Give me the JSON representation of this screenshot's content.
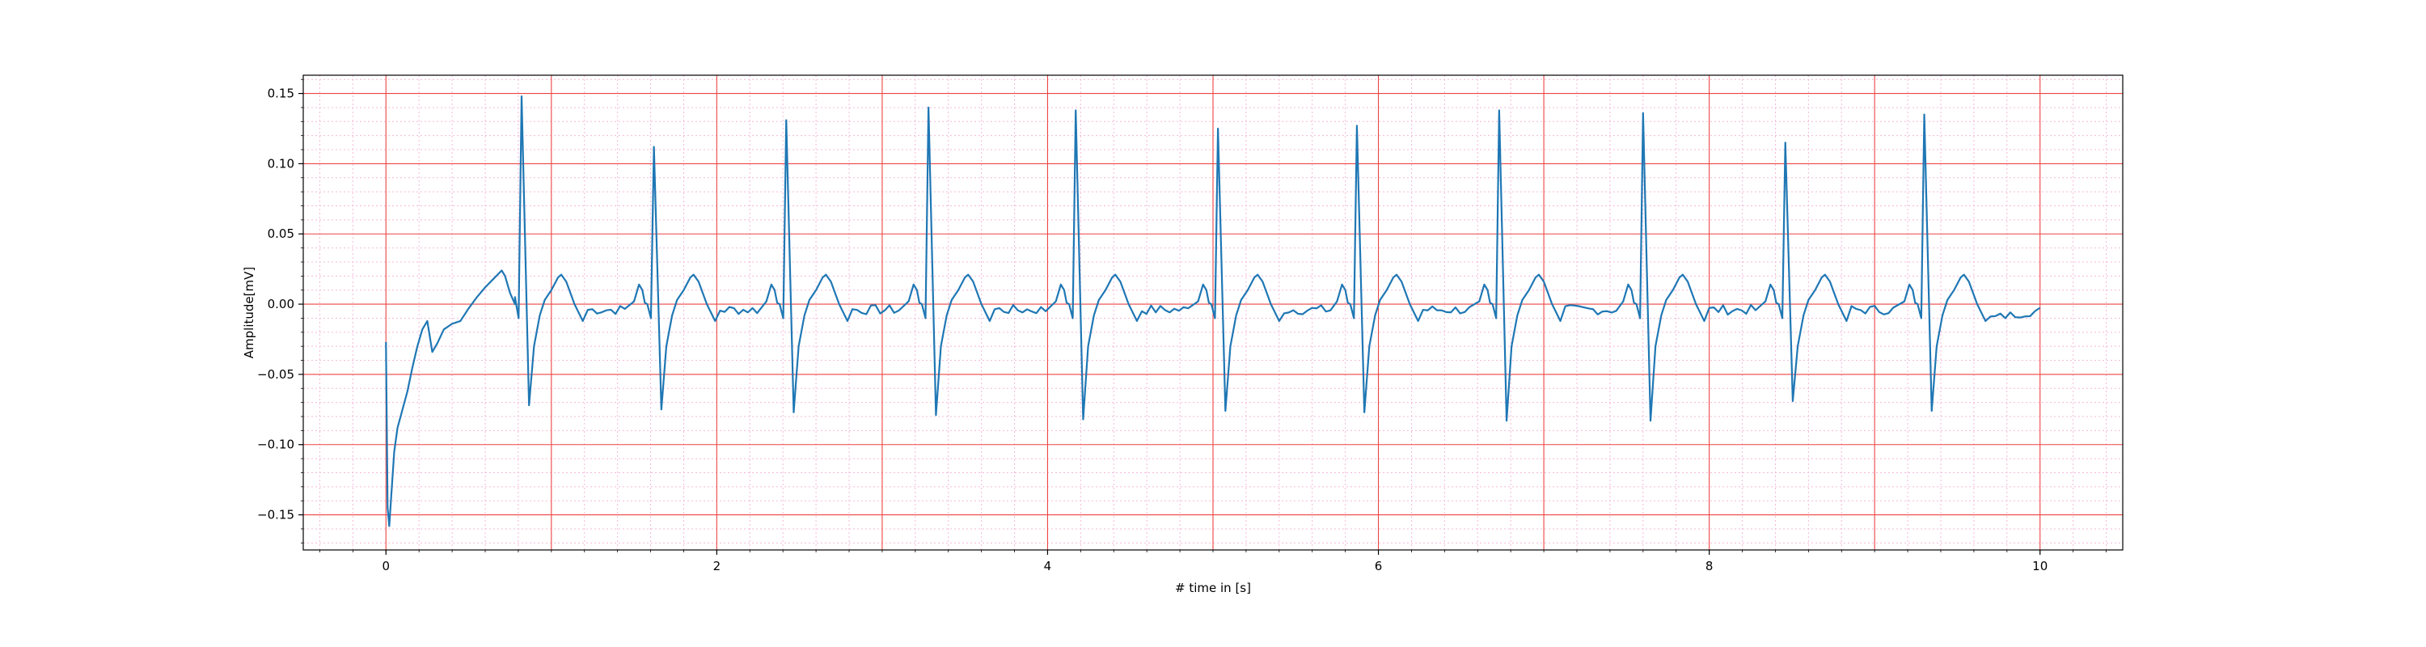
{
  "chart_data": {
    "type": "line",
    "xlabel": "# time in [s]",
    "ylabel": "Amplitude[mV]",
    "xlim": [
      -0.5,
      10.5
    ],
    "ylim": [
      -0.175,
      0.163
    ],
    "x_ticks": [
      0,
      2,
      4,
      6,
      8,
      10
    ],
    "x_tick_labels": [
      "0",
      "2",
      "4",
      "6",
      "8",
      "10"
    ],
    "y_ticks": [
      -0.15,
      -0.1,
      -0.05,
      0.0,
      0.05,
      0.1,
      0.15
    ],
    "y_tick_labels": [
      "−0.15",
      "−0.10",
      "−0.05",
      "0.00",
      "0.05",
      "0.10",
      "0.15"
    ],
    "grid": {
      "major": true,
      "minor": true,
      "major_x_step": 1,
      "major_y_step": 0.05,
      "minor_x_step": 0.2,
      "minor_y_step": 0.01
    },
    "colors": {
      "line": "#1f77b4",
      "major_grid": "#ee4444",
      "minor_grid": "#f6b8d8"
    },
    "r_peaks": [
      {
        "t": 0.82,
        "r": 0.148,
        "s": -0.072
      },
      {
        "t": 1.62,
        "r": 0.112,
        "s": -0.075
      },
      {
        "t": 2.42,
        "r": 0.131,
        "s": -0.077
      },
      {
        "t": 3.28,
        "r": 0.14,
        "s": -0.079
      },
      {
        "t": 4.17,
        "r": 0.138,
        "s": -0.082
      },
      {
        "t": 5.03,
        "r": 0.125,
        "s": -0.076
      },
      {
        "t": 5.87,
        "r": 0.127,
        "s": -0.077
      },
      {
        "t": 6.73,
        "r": 0.138,
        "s": -0.083
      },
      {
        "t": 7.6,
        "r": 0.136,
        "s": -0.083
      },
      {
        "t": 8.46,
        "r": 0.115,
        "s": -0.069
      },
      {
        "t": 9.3,
        "r": 0.135,
        "s": -0.076
      }
    ],
    "series": [
      {
        "values_x": [
          0.0,
          0.01,
          0.02,
          0.03,
          0.05,
          0.07,
          0.1,
          0.13,
          0.16,
          0.19,
          0.22,
          0.25,
          0.28,
          0.31,
          0.35,
          0.4,
          0.45,
          0.5,
          0.55,
          0.6,
          0.65,
          0.7,
          0.72,
          0.75,
          0.78
        ],
        "values_y": [
          -0.027,
          -0.145,
          -0.158,
          -0.14,
          -0.105,
          -0.088,
          -0.075,
          -0.062,
          -0.045,
          -0.03,
          -0.018,
          -0.012,
          -0.034,
          -0.028,
          -0.018,
          -0.014,
          -0.012,
          -0.003,
          0.005,
          0.012,
          0.018,
          0.024,
          0.02,
          0.008,
          0.005
        ]
      }
    ]
  }
}
